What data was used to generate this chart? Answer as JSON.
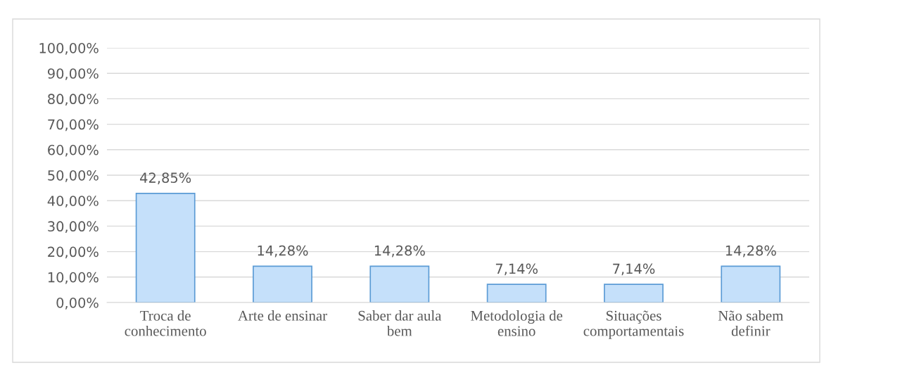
{
  "chart_data": {
    "type": "bar",
    "categories": [
      "Troca de\nconhecimento",
      "Arte de ensinar",
      "Saber dar aula\nbem",
      "Metodologia de\nensino",
      "Situações\ncomportamentais",
      "Não sabem\ndefinir"
    ],
    "values": [
      42.85,
      14.28,
      14.28,
      7.14,
      7.14,
      14.28
    ],
    "value_labels": [
      "42,85%",
      "14,28%",
      "14,28%",
      "7,14%",
      "7,14%",
      "14,28%"
    ],
    "color": "#c5e0fa",
    "ylim": [
      0,
      100
    ],
    "yticks": [
      {
        "value": 0,
        "label": "0,00%"
      },
      {
        "value": 10,
        "label": "10,00%"
      },
      {
        "value": 20,
        "label": "20,00%"
      },
      {
        "value": 30,
        "label": "30,00%"
      },
      {
        "value": 40,
        "label": "40,00%"
      },
      {
        "value": 50,
        "label": "50,00%"
      },
      {
        "value": 60,
        "label": "60,00%"
      },
      {
        "value": 70,
        "label": "70,00%"
      },
      {
        "value": 80,
        "label": "80,00%"
      },
      {
        "value": 90,
        "label": "90,00%"
      },
      {
        "value": 100,
        "label": "100,00%"
      }
    ],
    "grid": "y",
    "legend": false
  }
}
